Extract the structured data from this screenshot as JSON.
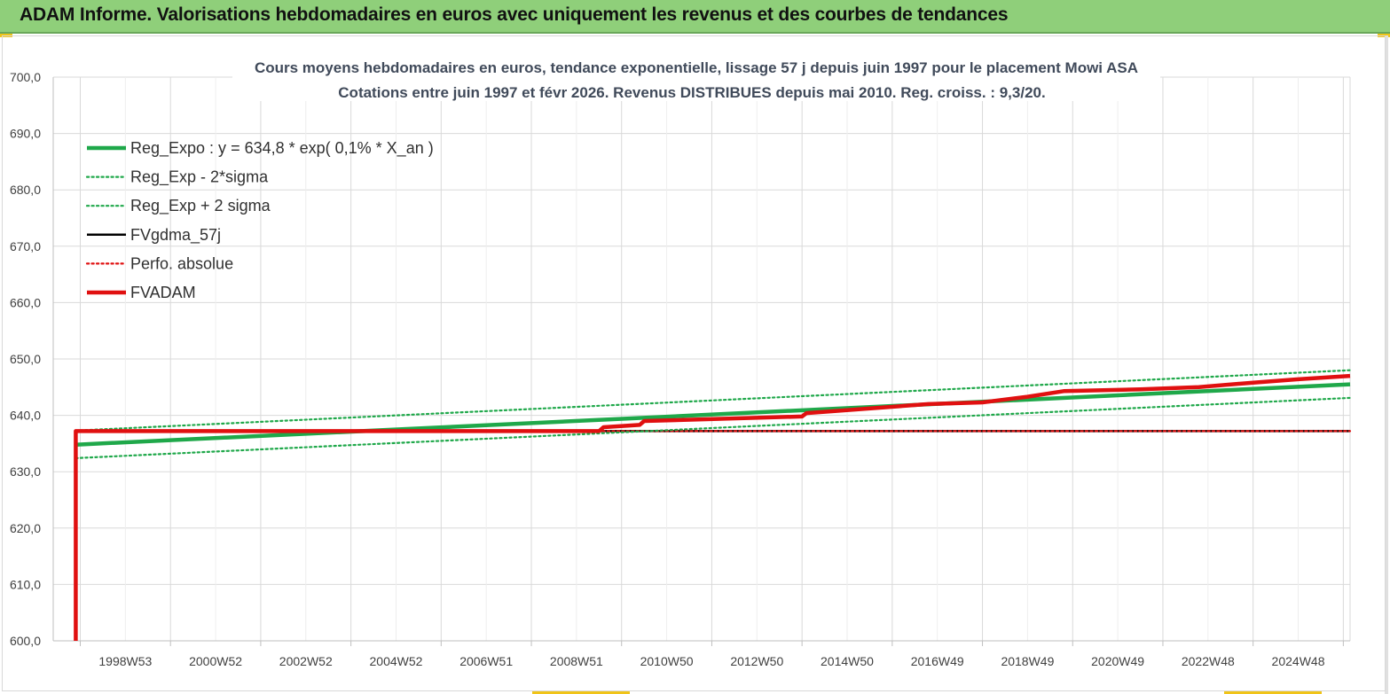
{
  "header": {
    "title": "ADAM Informe. Valorisations hebdomadaires en euros avec uniquement les revenus et des courbes de tendances"
  },
  "colors": {
    "header_bg": "#8fcf7a",
    "green": "#1fa84a",
    "red": "#e01010",
    "black": "#000000"
  },
  "chart_data": {
    "type": "line",
    "title_line1": "Cours moyens hebdomadaires en euros, tendance exponentielle, lissage 57 j depuis juin 1997 pour le placement Mowi ASA",
    "title_line2": "Cotations entre juin 1997 et févr 2026. Revenus DISTRIBUES depuis mai 2010. Reg. croiss. : 9,3/20.",
    "ylim": [
      600,
      700
    ],
    "y_ticks": [
      "600,0",
      "610,0",
      "620,0",
      "630,0",
      "640,0",
      "650,0",
      "660,0",
      "670,0",
      "680,0",
      "690,0",
      "700,0"
    ],
    "y_tick_values": [
      600,
      610,
      620,
      630,
      640,
      650,
      660,
      670,
      680,
      690,
      700
    ],
    "xlim": [
      1997.4,
      2026.15
    ],
    "x_ticks": [
      "1998W53",
      "2000W52",
      "2002W52",
      "2004W52",
      "2006W51",
      "2008W51",
      "2010W50",
      "2012W50",
      "2014W50",
      "2016W49",
      "2018W49",
      "2020W49",
      "2022W48",
      "2024W48"
    ],
    "x_tick_values": [
      1999,
      2001,
      2003,
      2005,
      2007,
      2009,
      2011,
      2013,
      2015,
      2017,
      2019,
      2021,
      2023,
      2025
    ],
    "grid": true,
    "legend_position": "top-left",
    "series": [
      {
        "name": "Reg_Expo : y = 634,8 * exp( 0,1% *  X_an )",
        "style": "solid-thick",
        "color": "#1fa84a",
        "x": [
          1997.9,
          2026.15
        ],
        "y": [
          634.8,
          645.5
        ]
      },
      {
        "name": "Reg_Exp - 2*sigma",
        "style": "dotted",
        "color": "#1fa84a",
        "x": [
          1997.9,
          2026.15
        ],
        "y": [
          632.4,
          643.1
        ]
      },
      {
        "name": "Reg_Exp + 2 sigma",
        "style": "dotted",
        "color": "#1fa84a",
        "x": [
          1997.9,
          2026.15
        ],
        "y": [
          637.3,
          648.0
        ]
      },
      {
        "name": "FVgdma_57j",
        "style": "solid",
        "color": "#000000",
        "x": [
          1997.9,
          2026.15
        ],
        "y": [
          637.2,
          637.2
        ]
      },
      {
        "name": "Perfo. absolue",
        "style": "dotted",
        "color": "#e01010",
        "x": [
          1997.9,
          2026.15
        ],
        "y": [
          637.2,
          637.2
        ]
      },
      {
        "name": "FVADAM",
        "style": "solid-thick",
        "color": "#e01010",
        "x": [
          1997.9,
          1997.9,
          2009.5,
          2009.6,
          2010.4,
          2010.5,
          2014.0,
          2014.1,
          2016.8,
          2018.0,
          2019.0,
          2019.8,
          2021.5,
          2022.8,
          2024.0,
          2025.0,
          2026.15
        ],
        "y": [
          600.0,
          637.2,
          637.2,
          637.9,
          638.3,
          639.0,
          639.8,
          640.4,
          642.0,
          642.3,
          643.3,
          644.3,
          644.6,
          645.0,
          645.8,
          646.4,
          647.0
        ]
      }
    ]
  }
}
